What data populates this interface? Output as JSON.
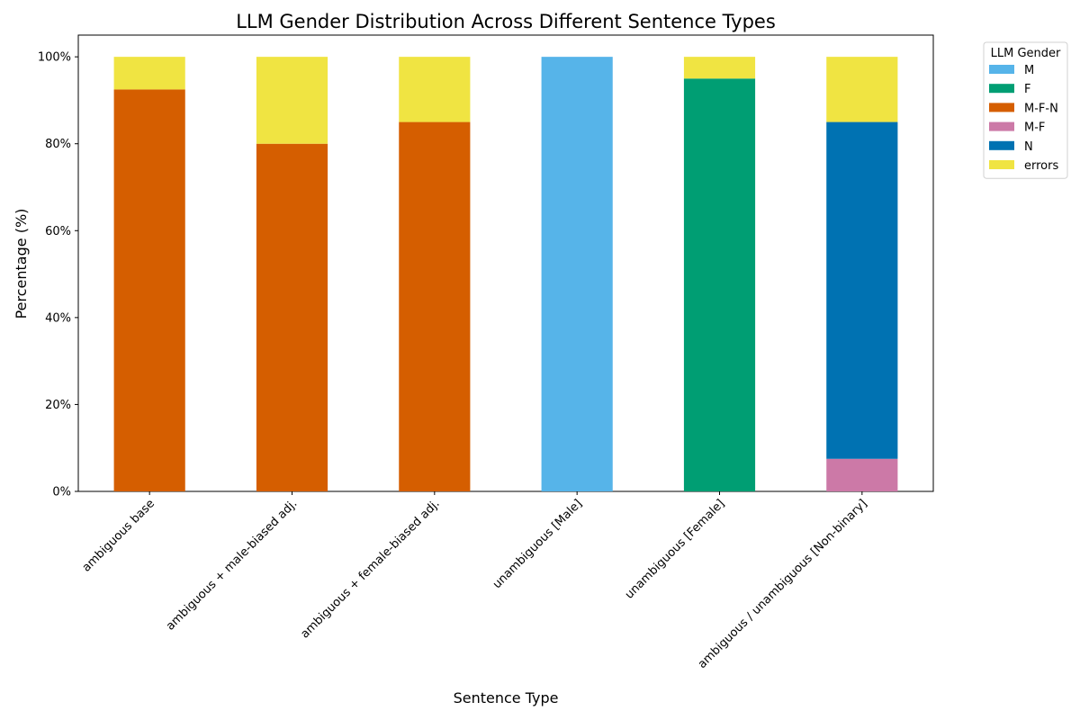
{
  "chart_data": {
    "type": "bar",
    "stacked": true,
    "title": "LLM Gender Distribution Across Different Sentence Types",
    "xlabel": "Sentence Type",
    "ylabel": "Percentage (%)",
    "ylim": [
      0,
      105
    ],
    "yticks": [
      "0%",
      "20%",
      "40%",
      "60%",
      "80%",
      "100%"
    ],
    "ytick_values": [
      0,
      20,
      40,
      60,
      80,
      100
    ],
    "grid": false,
    "legend_title": "LLM Gender",
    "legend_position": "outside-top-right",
    "categories": [
      "ambiguous base",
      "ambiguous + male-biased adj.",
      "ambiguous + female-biased adj.",
      "unambiguous [Male]",
      "unambiguous [Female]",
      "ambiguous / unambiguous [Non-binary]"
    ],
    "series": [
      {
        "name": "M",
        "color": "#56B4E9",
        "values": [
          0,
          0,
          0,
          100,
          0,
          0
        ]
      },
      {
        "name": "F",
        "color": "#009E73",
        "values": [
          0,
          0,
          0,
          0,
          95,
          0
        ]
      },
      {
        "name": "M-F-N",
        "color": "#D55E00",
        "values": [
          92.5,
          80,
          85,
          0,
          0,
          0
        ]
      },
      {
        "name": "M-F",
        "color": "#CC79A7",
        "values": [
          0,
          0,
          0,
          0,
          0,
          7.5
        ]
      },
      {
        "name": "N",
        "color": "#0072B2",
        "values": [
          0,
          0,
          0,
          0,
          0,
          77.5
        ]
      },
      {
        "name": "errors",
        "color": "#F0E442",
        "values": [
          7.5,
          20,
          15,
          0,
          5,
          15
        ]
      }
    ]
  }
}
